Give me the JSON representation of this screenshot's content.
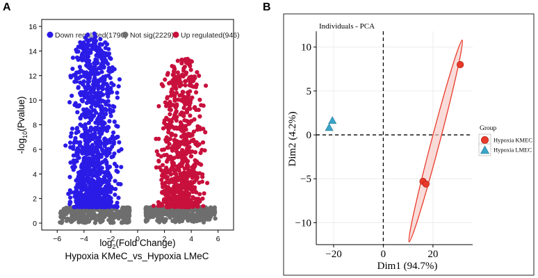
{
  "panels": {
    "a_label": "A",
    "b_label": "B"
  },
  "colors": {
    "down": "#2b1be6",
    "not_sig": "#6e6e6e",
    "up": "#c8103c",
    "kmec": "#e8392a",
    "lmec": "#3aa5c9"
  },
  "chart_data": [
    {
      "type": "scatter",
      "name": "volcano",
      "xlabel_main": "log",
      "xlabel_sub": "2",
      "xlabel_rest": "(Fold Change)",
      "ylabel_pre": "-log",
      "ylabel_sub": "10",
      "ylabel_rest": "(Pvalue)",
      "caption": "Hypoxia KMeC_vs_Hypoxia LMeC",
      "xlim": [
        -7,
        7
      ],
      "ylim": [
        0,
        16
      ],
      "xticks": [
        -6,
        -4,
        -2,
        0,
        2,
        4,
        6
      ],
      "yticks": [
        0,
        2,
        4,
        6,
        8,
        10,
        12,
        14,
        16
      ],
      "xtick_labels": [
        "−6",
        "−4",
        "−2",
        "0",
        "2",
        "4",
        "6"
      ],
      "ytick_labels": [
        "0",
        "2",
        "4",
        "6",
        "8",
        "10",
        "12",
        "14",
        "16"
      ],
      "legend": [
        {
          "label": "Down regulated(1790)",
          "key": "down"
        },
        {
          "label": "Not sig(2229)",
          "key": "not_sig"
        },
        {
          "label": "Up regulated(946)",
          "key": "up"
        }
      ],
      "series": [
        {
          "name": "Down regulated",
          "count": 1790,
          "x_range": [
            -5.8,
            -0.6
          ],
          "y_range": [
            1.3,
            15.5
          ]
        },
        {
          "name": "Not sig",
          "count": 2229,
          "x_range": [
            -5.8,
            5.8
          ],
          "y_range": [
            0,
            1.3
          ]
        },
        {
          "name": "Up regulated",
          "count": 946,
          "x_range": [
            0.6,
            5.8
          ],
          "y_range": [
            1.3,
            13.5
          ]
        }
      ]
    },
    {
      "type": "scatter",
      "name": "pca",
      "title": "Individuals - PCA",
      "xlabel": "Dim1 (94.7%)",
      "ylabel": "Dim2 (4.2%)",
      "xlim": [
        -27,
        36
      ],
      "ylim": [
        -12.5,
        11.8
      ],
      "xticks": [
        -20,
        0,
        20
      ],
      "yticks": [
        -10,
        -5,
        0,
        5,
        10
      ],
      "xtick_labels": [
        "−20",
        "0",
        "20"
      ],
      "ytick_labels": [
        "−10",
        "−5",
        "0",
        "5",
        "10"
      ],
      "legend_title": "Group",
      "groups": [
        {
          "name": "Hypoxia KMEC",
          "shape": "circle",
          "key": "kmec",
          "points": [
            [
              31,
              8
            ],
            [
              16,
              -5.3
            ],
            [
              17.2,
              -5.6
            ]
          ],
          "ellipse_endpoints": [
            [
              10.4,
              -12.2
            ],
            [
              31.8,
              10.8
            ]
          ]
        },
        {
          "name": "Hypoxia LMEC",
          "shape": "triangle",
          "key": "lmec",
          "points": [
            [
              -20.5,
              1.6
            ],
            [
              -21.8,
              0.8
            ]
          ]
        }
      ]
    }
  ]
}
